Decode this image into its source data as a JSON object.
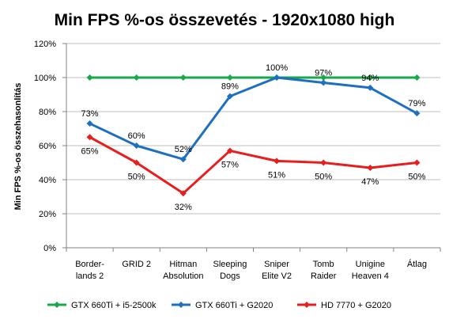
{
  "chart_data": {
    "type": "line",
    "title": "Min FPS %-os összevetés - 1920x1080 high",
    "xlabel": "",
    "ylabel": "Min FPS %-os összehasonlítás",
    "ylim": [
      0,
      120
    ],
    "y_ticks": [
      0,
      20,
      40,
      60,
      80,
      100,
      120
    ],
    "y_tick_format": "%",
    "grid": "horizontal",
    "legend_position": "bottom",
    "categories": [
      [
        "Border-",
        "lands 2"
      ],
      [
        "GRID 2"
      ],
      [
        "Hitman",
        "Absolution"
      ],
      [
        "Sleeping",
        "Dogs"
      ],
      [
        "Sniper",
        "Elite V2"
      ],
      [
        "Tomb",
        "Raider"
      ],
      [
        "Unigine",
        "Heaven 4"
      ],
      [
        "Átlag"
      ]
    ],
    "series": [
      {
        "name": "GTX 660Ti + i5-2500k",
        "color": "#19a94b",
        "values": [
          100,
          100,
          100,
          100,
          100,
          100,
          100,
          100
        ],
        "labels": [
          "",
          "",
          "",
          "",
          "",
          "",
          "",
          ""
        ],
        "label_pos": [
          "above",
          "above",
          "above",
          "above",
          "above",
          "above",
          "above",
          "above"
        ]
      },
      {
        "name": "GTX 660Ti + G2020",
        "color": "#1f6fc1",
        "values": [
          73,
          60,
          52,
          89,
          100,
          97,
          94,
          79
        ],
        "labels": [
          "73%",
          "60%",
          "52%",
          "89%",
          "100%",
          "97%",
          "94%",
          "79%"
        ],
        "label_pos": [
          "above",
          "above",
          "above",
          "above",
          "above",
          "above",
          "above",
          "above"
        ]
      },
      {
        "name": "HD 7770 + G2020",
        "color": "#e81d1d",
        "values": [
          65,
          50,
          32,
          57,
          51,
          50,
          47,
          50
        ],
        "labels": [
          "65%",
          "50%",
          "32%",
          "57%",
          "51%",
          "50%",
          "47%",
          "50%"
        ],
        "label_pos": [
          "below",
          "below",
          "below",
          "below",
          "below",
          "below",
          "below",
          "below"
        ]
      }
    ]
  }
}
